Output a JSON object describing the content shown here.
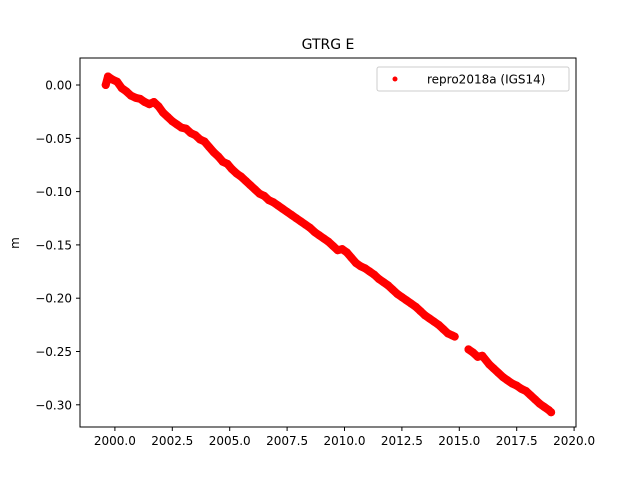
{
  "chart_data": {
    "type": "scatter",
    "title": "GTRG E",
    "xlabel": "",
    "ylabel": "m",
    "xlim": [
      1998.5,
      2020.1
    ],
    "ylim": [
      -0.325,
      0.025
    ],
    "xticks": [
      2000.0,
      2002.5,
      2005.0,
      2007.5,
      2010.0,
      2012.5,
      2015.0,
      2017.5,
      2020.0
    ],
    "xtick_labels": [
      "2000.0",
      "2002.5",
      "2005.0",
      "2007.5",
      "2010.0",
      "2012.5",
      "2015.0",
      "2017.5",
      "2020.0"
    ],
    "yticks": [
      0.0,
      -0.05,
      -0.1,
      -0.15,
      -0.2,
      -0.25,
      -0.3
    ],
    "ytick_labels": [
      "0.00",
      "−0.05",
      "−0.10",
      "−0.15",
      "−0.20",
      "−0.25",
      "−0.30"
    ],
    "grid": false,
    "legend_position": "top-right",
    "series": [
      {
        "name": "repro2018a (IGS14)",
        "color": "#ff0000",
        "marker": "circle",
        "x": [
          1999.6,
          1999.7,
          1999.9,
          2000.1,
          2000.3,
          2000.5,
          2000.7,
          2000.9,
          2001.1,
          2001.3,
          2001.5,
          2001.7,
          2001.9,
          2002.1,
          2002.3,
          2002.5,
          2002.7,
          2002.9,
          2003.1,
          2003.3,
          2003.5,
          2003.7,
          2003.9,
          2004.1,
          2004.3,
          2004.5,
          2004.7,
          2004.9,
          2005.1,
          2005.3,
          2005.5,
          2005.7,
          2005.9,
          2006.1,
          2006.3,
          2006.5,
          2006.7,
          2006.9,
          2007.1,
          2007.3,
          2007.5,
          2007.7,
          2007.9,
          2008.1,
          2008.3,
          2008.5,
          2008.7,
          2008.9,
          2009.1,
          2009.3,
          2009.5,
          2009.7,
          2009.9,
          2010.1,
          2010.3,
          2010.5,
          2010.7,
          2010.9,
          2011.1,
          2011.3,
          2011.5,
          2011.7,
          2011.9,
          2012.1,
          2012.3,
          2012.5,
          2012.7,
          2012.9,
          2013.1,
          2013.3,
          2013.5,
          2013.7,
          2013.9,
          2014.1,
          2014.3,
          2014.5,
          2014.7,
          2014.8,
          2015.4,
          2015.6,
          2015.8,
          2016.0,
          2016.3,
          2016.5,
          2016.7,
          2016.9,
          2017.1,
          2017.3,
          2017.5,
          2017.7,
          2017.9,
          2018.1,
          2018.3,
          2018.5,
          2018.7,
          2018.9,
          2019.0
        ],
        "y": [
          0.0,
          0.008,
          0.005,
          0.003,
          -0.003,
          -0.006,
          -0.01,
          -0.012,
          -0.013,
          -0.016,
          -0.018,
          -0.016,
          -0.02,
          -0.026,
          -0.03,
          -0.034,
          -0.037,
          -0.04,
          -0.041,
          -0.045,
          -0.047,
          -0.051,
          -0.053,
          -0.058,
          -0.063,
          -0.067,
          -0.072,
          -0.074,
          -0.079,
          -0.083,
          -0.086,
          -0.09,
          -0.094,
          -0.098,
          -0.102,
          -0.104,
          -0.108,
          -0.11,
          -0.113,
          -0.116,
          -0.119,
          -0.122,
          -0.125,
          -0.128,
          -0.131,
          -0.134,
          -0.138,
          -0.141,
          -0.144,
          -0.147,
          -0.151,
          -0.155,
          -0.154,
          -0.157,
          -0.162,
          -0.167,
          -0.17,
          -0.172,
          -0.175,
          -0.178,
          -0.182,
          -0.185,
          -0.188,
          -0.192,
          -0.196,
          -0.199,
          -0.202,
          -0.205,
          -0.208,
          -0.212,
          -0.216,
          -0.219,
          -0.222,
          -0.225,
          -0.229,
          -0.233,
          -0.235,
          -0.236,
          -0.248,
          -0.251,
          -0.255,
          -0.254,
          -0.262,
          -0.266,
          -0.27,
          -0.274,
          -0.277,
          -0.28,
          -0.282,
          -0.285,
          -0.287,
          -0.291,
          -0.295,
          -0.299,
          -0.302,
          -0.305,
          -0.307
        ]
      }
    ]
  }
}
